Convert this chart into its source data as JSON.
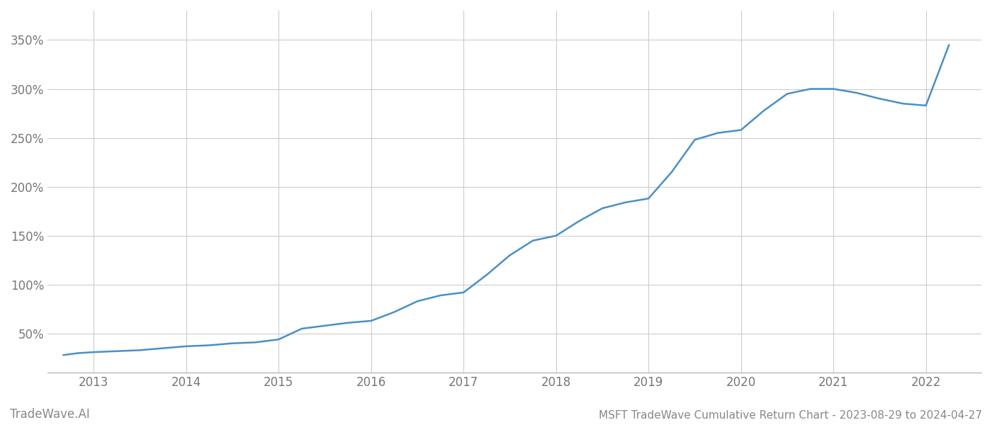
{
  "title": "MSFT TradeWave Cumulative Return Chart - 2023-08-29 to 2024-04-27",
  "watermark": "TradeWave.AI",
  "line_color": "#4a90c4",
  "background_color": "#ffffff",
  "grid_color": "#cccccc",
  "x_years": [
    2013,
    2014,
    2015,
    2016,
    2017,
    2018,
    2019,
    2020,
    2021,
    2022
  ],
  "data_x": [
    2012.67,
    2012.83,
    2013.0,
    2013.25,
    2013.5,
    2013.75,
    2014.0,
    2014.25,
    2014.5,
    2014.75,
    2015.0,
    2015.25,
    2015.5,
    2015.75,
    2016.0,
    2016.25,
    2016.5,
    2016.75,
    2017.0,
    2017.25,
    2017.5,
    2017.75,
    2018.0,
    2018.25,
    2018.5,
    2018.75,
    2019.0,
    2019.25,
    2019.5,
    2019.75,
    2020.0,
    2020.25,
    2020.5,
    2020.75,
    2021.0,
    2021.25,
    2021.5,
    2021.75,
    2022.0,
    2022.25
  ],
  "data_y": [
    28,
    30,
    31,
    32,
    33,
    35,
    37,
    38,
    40,
    41,
    44,
    55,
    58,
    61,
    63,
    72,
    83,
    89,
    92,
    110,
    130,
    145,
    150,
    165,
    178,
    184,
    188,
    215,
    248,
    255,
    258,
    278,
    295,
    300,
    300,
    296,
    290,
    285,
    283,
    345
  ],
  "ylim": [
    10,
    380
  ],
  "xlim": [
    2012.5,
    2022.6
  ],
  "yticks": [
    50,
    100,
    150,
    200,
    250,
    300,
    350
  ],
  "ytick_labels": [
    "50%",
    "100%",
    "150%",
    "200%",
    "250%",
    "300%",
    "350%"
  ],
  "title_fontsize": 11,
  "watermark_fontsize": 12,
  "tick_fontsize": 12,
  "line_width": 1.8
}
